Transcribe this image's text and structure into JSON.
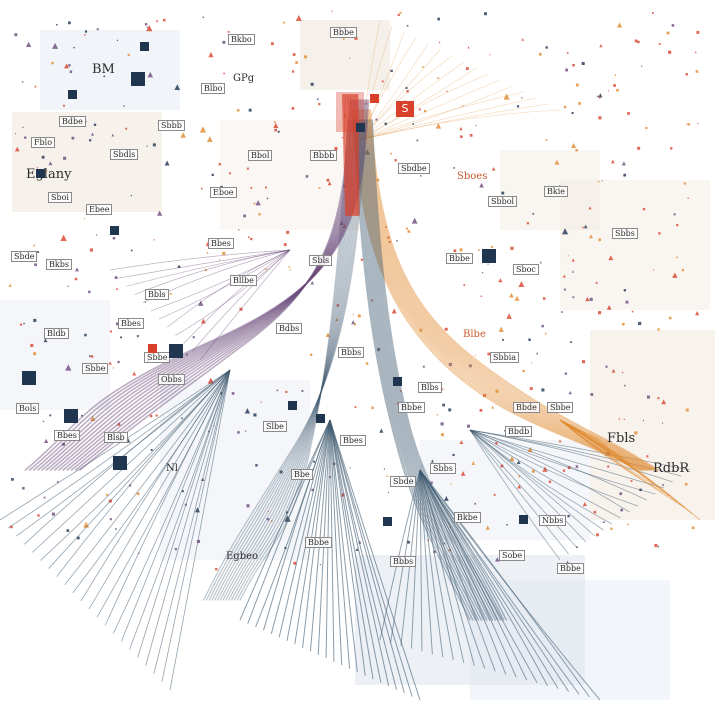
{
  "palette": {
    "red": "#d8402a",
    "orange": "#e08a2e",
    "purple": "#6a4a7a",
    "slate": "#3e5a70",
    "navy": "#1f3550",
    "paper_warm": "#efe6da",
    "paper_cool": "#dfe6ef"
  },
  "badge_text": "S",
  "labels": [
    {
      "text": "BM"
    },
    {
      "text": "Bkbo"
    },
    {
      "text": "Bbbe"
    },
    {
      "text": "GPg"
    },
    {
      "text": "Blbo"
    },
    {
      "text": "Eglany"
    },
    {
      "text": "Bdbe"
    },
    {
      "text": "Fblo"
    },
    {
      "text": "Sbdls"
    },
    {
      "text": "Sboi"
    },
    {
      "text": "Ebee"
    },
    {
      "text": "Sbbb"
    },
    {
      "text": "Bbol"
    },
    {
      "text": "Bbbb"
    },
    {
      "text": "Sbdbe"
    },
    {
      "text": "Sboes"
    },
    {
      "text": "Bkie"
    },
    {
      "text": "Sbbol"
    },
    {
      "text": "Sbbs"
    },
    {
      "text": "Sboc"
    },
    {
      "text": "Sbbia"
    },
    {
      "text": "Fbls"
    },
    {
      "text": "RdbR"
    },
    {
      "text": "Blbe"
    },
    {
      "text": "Bbde"
    },
    {
      "text": "Sbbe"
    },
    {
      "text": "Bbdb"
    },
    {
      "text": "Nbbs"
    },
    {
      "text": "Bbbe"
    },
    {
      "text": "Egbeo"
    },
    {
      "text": "Sbde"
    },
    {
      "text": "Bkbs"
    },
    {
      "text": "Bldb"
    },
    {
      "text": "Sbbe"
    },
    {
      "text": "Bols"
    },
    {
      "text": "Bbes"
    },
    {
      "text": "Blsb"
    },
    {
      "text": "Sbbe"
    },
    {
      "text": "Obbs"
    },
    {
      "text": "Bbls"
    },
    {
      "text": "Bbes"
    },
    {
      "text": "Eboe"
    },
    {
      "text": "Bllbe"
    },
    {
      "text": "Bdbs"
    },
    {
      "text": "Bbbs"
    },
    {
      "text": "Nl"
    },
    {
      "text": "Bbe"
    },
    {
      "text": "Sbde"
    },
    {
      "text": "Bbbe"
    },
    {
      "text": "Sobe"
    },
    {
      "text": "Bbbe"
    },
    {
      "text": "Blbs"
    },
    {
      "text": "Sbbs"
    },
    {
      "text": "Bkbe"
    },
    {
      "text": "Bbbs"
    },
    {
      "text": "Bbes"
    },
    {
      "text": "Slbe"
    },
    {
      "text": "Bbes"
    },
    {
      "text": "Bbbe"
    },
    {
      "text": "Sbls"
    }
  ]
}
